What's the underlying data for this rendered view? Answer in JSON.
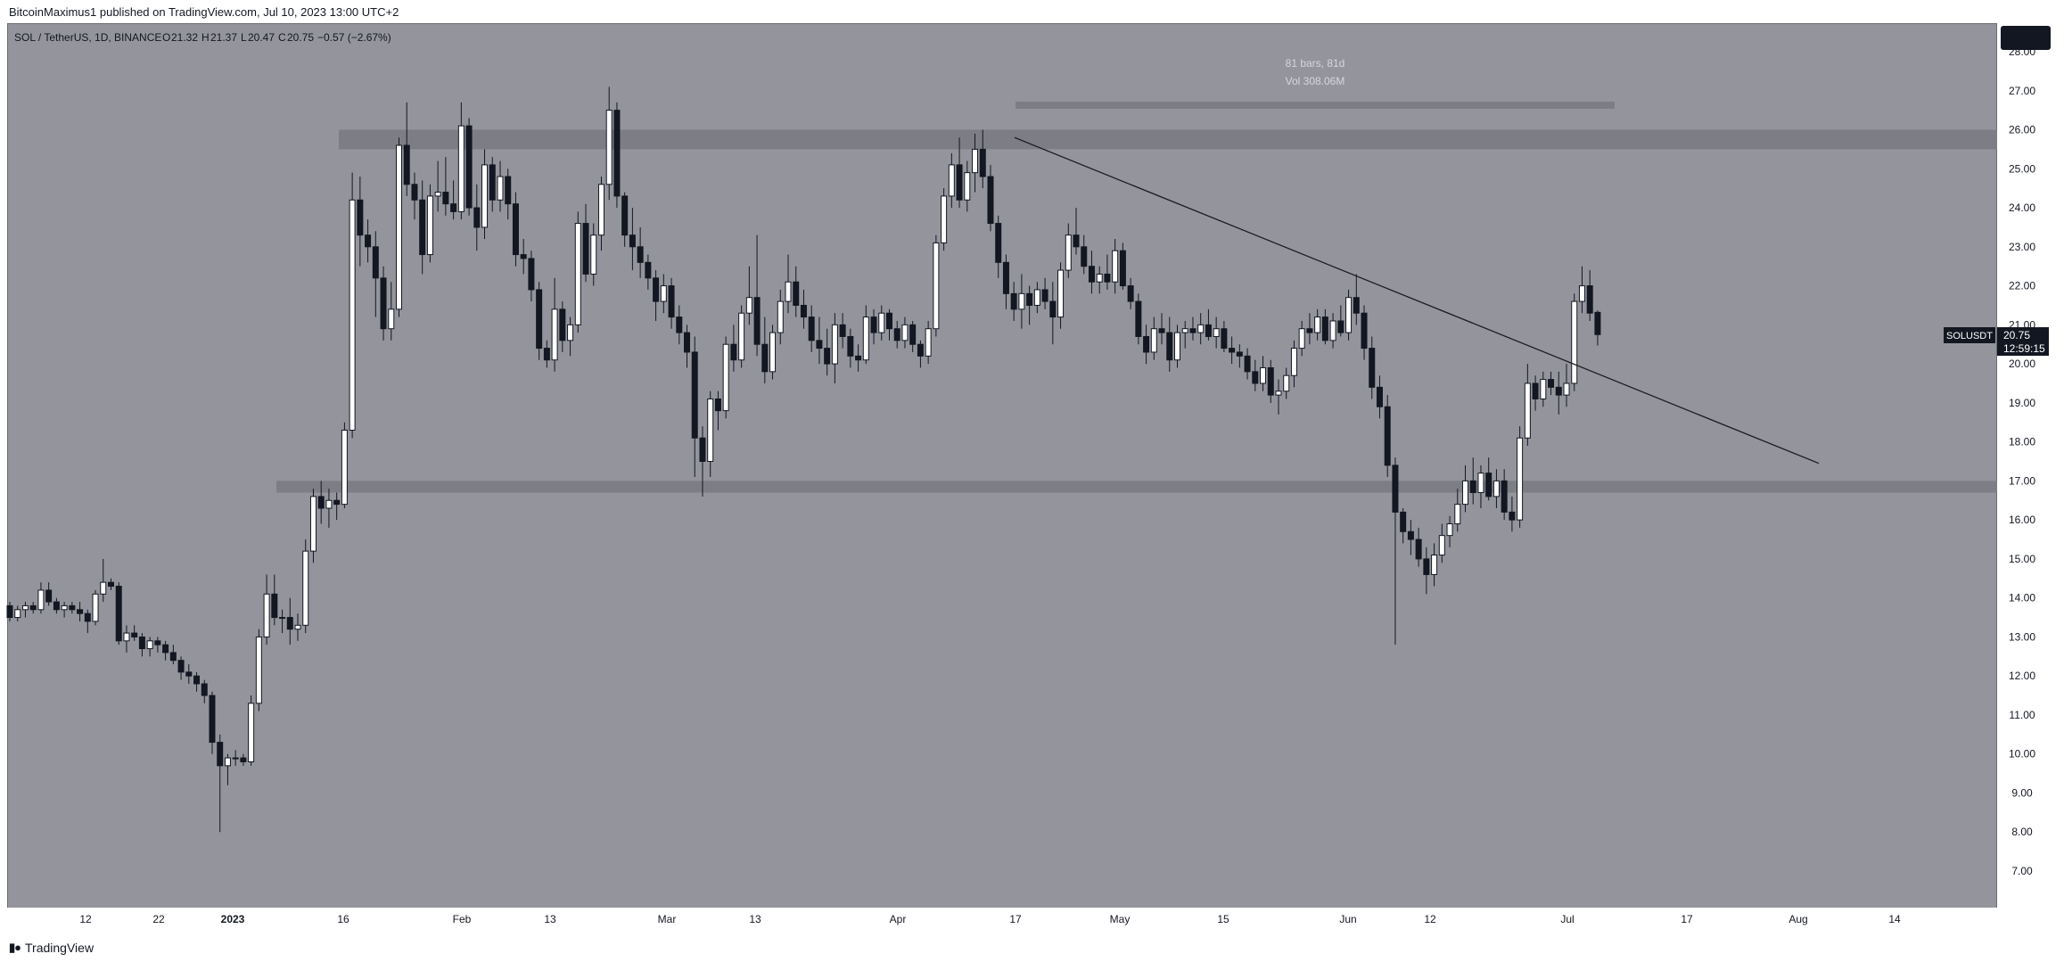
{
  "header": {
    "published": "BitcoinMaximus1 published on TradingView.com, Jul 10, 2023 13:00 UTC+2"
  },
  "legend": {
    "symbol": "SOL / TetherUS, 1D, BINANCE",
    "o_label": "O",
    "o_value": "21.32",
    "h_label": "H",
    "h_value": "21.37",
    "l_label": "L",
    "l_value": "20.47",
    "c_label": "C",
    "c_value": "20.75",
    "change": "−0.57 (−2.67%)"
  },
  "measure": {
    "bars": "81 bars, 81d",
    "vol": "Vol 308.06M"
  },
  "price_tag": {
    "symbol": "SOLUSDT",
    "price": "20.75",
    "countdown": "12:59:15"
  },
  "footer": {
    "brand": "TradingView"
  },
  "colors": {
    "background": "#94959c",
    "up_candle": "#ffffff",
    "down_candle": "#131722",
    "zone": "#7d7e85",
    "trendline": "#1c1d22"
  },
  "chart_data": {
    "type": "candlestick",
    "y_axis": {
      "ticks": [
        "7.00",
        "8.00",
        "9.00",
        "10.00",
        "11.00",
        "12.00",
        "13.00",
        "14.00",
        "15.00",
        "16.00",
        "17.00",
        "18.00",
        "19.00",
        "20.00",
        "21.00",
        "22.00",
        "23.00",
        "24.00",
        "25.00",
        "26.00",
        "27.00",
        "28.00"
      ],
      "ylim": [
        6.2,
        28.5
      ]
    },
    "x_axis": {
      "ticks": [
        "12",
        "22",
        "2023",
        "16",
        "Feb",
        "13",
        "Mar",
        "13",
        "Apr",
        "17",
        "May",
        "15",
        "Jun",
        "12",
        "Jul",
        "17",
        "Aug",
        "14"
      ]
    },
    "resistance_zone": [
      25.5,
      26.0
    ],
    "support_zone": [
      16.7,
      17.0
    ],
    "descending_trendline": {
      "start": [
        "Apr 17",
        25.8
      ],
      "end": [
        "Aug 2",
        17.45
      ]
    },
    "last_close": 20.75,
    "ohlc": [
      [
        13.8,
        13.9,
        13.4,
        13.5
      ],
      [
        13.5,
        13.8,
        13.4,
        13.7
      ],
      [
        13.7,
        13.9,
        13.5,
        13.8
      ],
      [
        13.8,
        13.9,
        13.6,
        13.7
      ],
      [
        13.7,
        14.4,
        13.6,
        14.2
      ],
      [
        14.2,
        14.4,
        13.8,
        13.9
      ],
      [
        13.9,
        14.0,
        13.6,
        13.7
      ],
      [
        13.7,
        13.9,
        13.5,
        13.8
      ],
      [
        13.8,
        13.9,
        13.6,
        13.7
      ],
      [
        13.7,
        13.9,
        13.4,
        13.6
      ],
      [
        13.6,
        13.7,
        13.1,
        13.4
      ],
      [
        13.4,
        14.2,
        13.3,
        14.1
      ],
      [
        14.1,
        15.0,
        13.9,
        14.4
      ],
      [
        14.4,
        14.5,
        14.2,
        14.3
      ],
      [
        14.3,
        14.4,
        12.8,
        12.9
      ],
      [
        12.9,
        13.3,
        12.6,
        13.1
      ],
      [
        13.1,
        13.3,
        12.9,
        13.0
      ],
      [
        13.0,
        13.1,
        12.5,
        12.7
      ],
      [
        12.7,
        13.0,
        12.5,
        12.9
      ],
      [
        12.9,
        13.0,
        12.6,
        12.8
      ],
      [
        12.8,
        12.9,
        12.4,
        12.6
      ],
      [
        12.6,
        12.8,
        12.3,
        12.4
      ],
      [
        12.4,
        12.5,
        11.9,
        12.1
      ],
      [
        12.1,
        12.3,
        11.8,
        12.0
      ],
      [
        12.0,
        12.1,
        11.6,
        11.8
      ],
      [
        11.8,
        11.9,
        11.3,
        11.5
      ],
      [
        11.5,
        11.6,
        10.0,
        10.3
      ],
      [
        10.3,
        10.5,
        8.0,
        9.7
      ],
      [
        9.7,
        10.0,
        9.2,
        9.9
      ],
      [
        9.9,
        10.1,
        9.7,
        9.9
      ],
      [
        9.9,
        10.0,
        9.7,
        9.8
      ],
      [
        9.8,
        11.5,
        9.7,
        11.3
      ],
      [
        11.3,
        13.2,
        11.1,
        13.0
      ],
      [
        13.0,
        14.6,
        12.8,
        14.1
      ],
      [
        14.1,
        14.6,
        13.3,
        13.5
      ],
      [
        13.5,
        13.7,
        13.1,
        13.5
      ],
      [
        13.5,
        14.0,
        12.8,
        13.2
      ],
      [
        13.2,
        13.6,
        12.9,
        13.3
      ],
      [
        13.3,
        15.5,
        13.1,
        15.2
      ],
      [
        15.2,
        16.8,
        14.9,
        16.6
      ],
      [
        16.6,
        17.0,
        15.9,
        16.3
      ],
      [
        16.3,
        16.8,
        15.8,
        16.5
      ],
      [
        16.5,
        16.7,
        16.0,
        16.4
      ],
      [
        16.4,
        18.5,
        16.3,
        18.3
      ],
      [
        18.3,
        24.9,
        18.1,
        24.2
      ],
      [
        24.2,
        24.8,
        22.5,
        23.3
      ],
      [
        23.3,
        23.7,
        22.6,
        23.0
      ],
      [
        23.0,
        23.4,
        21.2,
        22.2
      ],
      [
        22.2,
        22.5,
        20.6,
        20.9
      ],
      [
        20.9,
        22.1,
        20.6,
        21.4
      ],
      [
        21.4,
        25.8,
        21.2,
        25.6
      ],
      [
        25.6,
        26.7,
        24.3,
        24.6
      ],
      [
        24.6,
        24.9,
        23.7,
        24.2
      ],
      [
        24.2,
        24.7,
        22.3,
        22.8
      ],
      [
        22.8,
        24.6,
        22.6,
        24.3
      ],
      [
        24.3,
        25.2,
        23.9,
        24.4
      ],
      [
        24.4,
        25.3,
        23.8,
        24.1
      ],
      [
        24.1,
        24.7,
        23.7,
        23.9
      ],
      [
        23.9,
        26.7,
        23.7,
        26.1
      ],
      [
        26.1,
        26.3,
        23.8,
        24.0
      ],
      [
        24.0,
        24.6,
        22.9,
        23.5
      ],
      [
        23.5,
        25.5,
        23.2,
        25.1
      ],
      [
        25.1,
        25.3,
        23.9,
        24.2
      ],
      [
        24.2,
        25.2,
        23.9,
        24.8
      ],
      [
        24.8,
        25.0,
        23.7,
        24.1
      ],
      [
        24.1,
        24.4,
        22.5,
        22.8
      ],
      [
        22.8,
        23.2,
        22.3,
        22.7
      ],
      [
        22.7,
        22.9,
        21.6,
        21.9
      ],
      [
        21.9,
        22.1,
        20.1,
        20.4
      ],
      [
        20.4,
        20.6,
        19.9,
        20.1
      ],
      [
        20.1,
        22.2,
        19.8,
        21.4
      ],
      [
        21.4,
        21.6,
        20.3,
        20.6
      ],
      [
        20.6,
        21.2,
        20.2,
        21.0
      ],
      [
        21.0,
        23.9,
        20.8,
        23.6
      ],
      [
        23.6,
        24.1,
        22.1,
        22.3
      ],
      [
        22.3,
        23.6,
        22.0,
        23.3
      ],
      [
        23.3,
        24.8,
        22.9,
        24.6
      ],
      [
        24.6,
        27.1,
        24.2,
        26.5
      ],
      [
        26.5,
        26.7,
        24.0,
        24.3
      ],
      [
        24.3,
        24.4,
        23.0,
        23.3
      ],
      [
        23.3,
        24.0,
        22.4,
        23.0
      ],
      [
        23.0,
        23.5,
        22.2,
        22.6
      ],
      [
        22.6,
        22.8,
        21.9,
        22.2
      ],
      [
        22.2,
        22.4,
        21.1,
        21.6
      ],
      [
        21.6,
        22.3,
        21.3,
        22.0
      ],
      [
        22.0,
        22.2,
        20.9,
        21.2
      ],
      [
        21.2,
        21.5,
        20.5,
        20.8
      ],
      [
        20.8,
        21.0,
        19.9,
        20.3
      ],
      [
        20.3,
        20.7,
        17.1,
        18.1
      ],
      [
        18.1,
        18.4,
        16.6,
        17.5
      ],
      [
        17.5,
        19.3,
        17.1,
        19.1
      ],
      [
        19.1,
        19.3,
        18.3,
        18.8
      ],
      [
        18.8,
        20.7,
        18.6,
        20.5
      ],
      [
        20.5,
        21.0,
        19.8,
        20.1
      ],
      [
        20.1,
        21.5,
        19.9,
        21.3
      ],
      [
        21.3,
        22.5,
        21.0,
        21.7
      ],
      [
        21.7,
        23.3,
        20.2,
        20.5
      ],
      [
        20.5,
        21.2,
        19.5,
        19.8
      ],
      [
        19.8,
        21.0,
        19.6,
        20.8
      ],
      [
        20.8,
        21.9,
        20.5,
        21.6
      ],
      [
        21.6,
        22.8,
        21.3,
        22.1
      ],
      [
        22.1,
        22.5,
        21.2,
        21.5
      ],
      [
        21.5,
        21.9,
        20.9,
        21.2
      ],
      [
        21.2,
        21.5,
        20.3,
        20.6
      ],
      [
        20.6,
        21.2,
        20.0,
        20.4
      ],
      [
        20.4,
        20.9,
        19.7,
        20.0
      ],
      [
        20.0,
        21.3,
        19.5,
        21.0
      ],
      [
        21.0,
        21.3,
        20.4,
        20.7
      ],
      [
        20.7,
        20.9,
        19.9,
        20.2
      ],
      [
        20.2,
        20.5,
        19.8,
        20.1
      ],
      [
        20.1,
        21.5,
        20.0,
        21.2
      ],
      [
        21.2,
        21.4,
        20.5,
        20.8
      ],
      [
        20.8,
        21.5,
        20.6,
        21.3
      ],
      [
        21.3,
        21.4,
        20.6,
        20.9
      ],
      [
        20.9,
        21.1,
        20.4,
        20.6
      ],
      [
        20.6,
        21.2,
        20.4,
        21.0
      ],
      [
        21.0,
        21.1,
        20.3,
        20.5
      ],
      [
        20.5,
        20.6,
        19.9,
        20.2
      ],
      [
        20.2,
        21.1,
        20.0,
        20.9
      ],
      [
        20.9,
        23.3,
        20.7,
        23.1
      ],
      [
        23.1,
        24.5,
        22.9,
        24.3
      ],
      [
        24.3,
        25.4,
        24.0,
        25.1
      ],
      [
        25.1,
        25.8,
        24.0,
        24.2
      ],
      [
        24.2,
        25.2,
        23.9,
        24.9
      ],
      [
        24.9,
        25.9,
        24.4,
        25.5
      ],
      [
        25.5,
        26.0,
        24.5,
        24.8
      ],
      [
        24.8,
        25.1,
        23.4,
        23.6
      ],
      [
        23.6,
        23.8,
        22.2,
        22.6
      ],
      [
        22.6,
        22.8,
        21.4,
        21.8
      ],
      [
        21.8,
        22.1,
        21.1,
        21.4
      ],
      [
        21.4,
        22.3,
        20.9,
        21.8
      ],
      [
        21.8,
        22.0,
        21.0,
        21.5
      ],
      [
        21.5,
        22.1,
        21.3,
        21.9
      ],
      [
        21.9,
        22.2,
        21.4,
        21.6
      ],
      [
        21.6,
        22.1,
        20.5,
        21.2
      ],
      [
        21.2,
        22.6,
        20.9,
        22.4
      ],
      [
        22.4,
        23.6,
        22.2,
        23.3
      ],
      [
        23.3,
        24.0,
        22.8,
        23.0
      ],
      [
        23.0,
        23.3,
        22.3,
        22.5
      ],
      [
        22.5,
        22.9,
        21.8,
        22.1
      ],
      [
        22.1,
        22.5,
        21.8,
        22.3
      ],
      [
        22.3,
        22.8,
        21.9,
        22.1
      ],
      [
        22.1,
        23.2,
        21.8,
        22.9
      ],
      [
        22.9,
        23.1,
        21.9,
        22.0
      ],
      [
        22.0,
        22.2,
        21.4,
        21.6
      ],
      [
        21.6,
        21.8,
        20.5,
        20.7
      ],
      [
        20.7,
        21.0,
        20.0,
        20.3
      ],
      [
        20.3,
        21.2,
        20.1,
        20.9
      ],
      [
        20.9,
        21.3,
        20.5,
        20.8
      ],
      [
        20.8,
        21.2,
        19.8,
        20.1
      ],
      [
        20.1,
        21.0,
        19.9,
        20.8
      ],
      [
        20.8,
        21.1,
        20.4,
        20.9
      ],
      [
        20.9,
        21.2,
        20.6,
        20.8
      ],
      [
        20.8,
        21.3,
        20.5,
        21.0
      ],
      [
        21.0,
        21.4,
        20.6,
        20.7
      ],
      [
        20.7,
        21.2,
        20.4,
        20.9
      ],
      [
        20.9,
        21.1,
        20.3,
        20.4
      ],
      [
        20.4,
        20.7,
        20.0,
        20.3
      ],
      [
        20.3,
        20.5,
        19.9,
        20.2
      ],
      [
        20.2,
        20.4,
        19.6,
        19.8
      ],
      [
        19.8,
        20.1,
        19.3,
        19.5
      ],
      [
        19.5,
        20.2,
        19.3,
        19.9
      ],
      [
        19.9,
        20.1,
        19.0,
        19.2
      ],
      [
        19.2,
        19.6,
        18.7,
        19.3
      ],
      [
        19.3,
        19.9,
        19.1,
        19.7
      ],
      [
        19.7,
        20.6,
        19.4,
        20.4
      ],
      [
        20.4,
        21.1,
        20.2,
        20.9
      ],
      [
        20.9,
        21.3,
        20.5,
        20.8
      ],
      [
        20.8,
        21.4,
        20.6,
        21.2
      ],
      [
        21.2,
        21.4,
        20.5,
        20.6
      ],
      [
        20.6,
        21.3,
        20.4,
        21.1
      ],
      [
        21.1,
        21.5,
        20.7,
        20.8
      ],
      [
        20.8,
        21.9,
        20.6,
        21.7
      ],
      [
        21.7,
        22.3,
        21.0,
        21.3
      ],
      [
        21.3,
        21.5,
        20.1,
        20.4
      ],
      [
        20.4,
        20.7,
        19.1,
        19.4
      ],
      [
        19.4,
        19.7,
        18.6,
        18.9
      ],
      [
        18.9,
        19.2,
        17.1,
        17.4
      ],
      [
        17.4,
        17.6,
        12.8,
        16.2
      ],
      [
        16.2,
        16.3,
        15.4,
        15.7
      ],
      [
        15.7,
        16.0,
        15.1,
        15.5
      ],
      [
        15.5,
        15.8,
        14.8,
        15.0
      ],
      [
        15.0,
        15.3,
        14.1,
        14.6
      ],
      [
        14.6,
        15.4,
        14.3,
        15.1
      ],
      [
        15.1,
        15.9,
        14.9,
        15.6
      ],
      [
        15.6,
        16.1,
        15.3,
        15.9
      ],
      [
        15.9,
        16.8,
        15.7,
        16.4
      ],
      [
        16.4,
        17.4,
        16.2,
        17.0
      ],
      [
        17.0,
        17.6,
        16.4,
        16.7
      ],
      [
        16.7,
        17.4,
        16.3,
        17.2
      ],
      [
        17.2,
        17.6,
        16.5,
        16.6
      ],
      [
        16.6,
        17.3,
        16.3,
        17.0
      ],
      [
        17.0,
        17.3,
        16.0,
        16.2
      ],
      [
        16.2,
        16.6,
        15.7,
        16.0
      ],
      [
        16.0,
        18.4,
        15.8,
        18.1
      ],
      [
        18.1,
        20.0,
        17.9,
        19.5
      ],
      [
        19.5,
        19.7,
        18.8,
        19.1
      ],
      [
        19.1,
        19.8,
        18.9,
        19.6
      ],
      [
        19.6,
        19.8,
        19.2,
        19.4
      ],
      [
        19.4,
        19.8,
        18.7,
        19.2
      ],
      [
        19.2,
        20.0,
        18.9,
        19.5
      ],
      [
        19.5,
        21.8,
        19.3,
        21.6
      ],
      [
        21.6,
        22.5,
        21.3,
        22.0
      ],
      [
        22.0,
        22.4,
        21.1,
        21.3
      ],
      [
        21.32,
        21.37,
        20.47,
        20.75
      ]
    ]
  }
}
